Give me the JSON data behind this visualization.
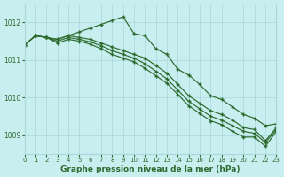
{
  "title": "Graphe pression niveau de la mer (hPa)",
  "bg_color": "#c8eef0",
  "grid_color": "#a8d8dc",
  "line_color": "#2d6a2d",
  "xlim": [
    0,
    23
  ],
  "ylim": [
    1008.5,
    1012.5
  ],
  "yticks": [
    1009,
    1010,
    1011,
    1012
  ],
  "xticks": [
    0,
    1,
    2,
    3,
    4,
    5,
    6,
    7,
    8,
    9,
    10,
    11,
    12,
    13,
    14,
    15,
    16,
    17,
    18,
    19,
    20,
    21,
    22,
    23
  ],
  "line1": [
    1011.4,
    1011.65,
    1011.6,
    1011.55,
    1011.65,
    1011.75,
    1011.85,
    1011.95,
    1012.05,
    1012.15,
    1011.7,
    1011.65,
    1011.3,
    1011.15,
    1010.75,
    1010.6,
    1010.35,
    1010.05,
    1009.95,
    1009.75,
    1009.55,
    1009.45,
    1009.25,
    1009.3
  ],
  "line2": [
    1011.4,
    1011.65,
    1011.6,
    1011.55,
    1011.65,
    1011.6,
    1011.55,
    1011.45,
    1011.35,
    1011.25,
    1011.15,
    1011.05,
    1010.85,
    1010.65,
    1010.35,
    1010.05,
    1009.85,
    1009.65,
    1009.55,
    1009.4,
    1009.2,
    1009.15,
    1008.85,
    1009.2
  ],
  "line3": [
    1011.4,
    1011.65,
    1011.6,
    1011.5,
    1011.6,
    1011.55,
    1011.48,
    1011.38,
    1011.25,
    1011.15,
    1011.05,
    1010.9,
    1010.7,
    1010.5,
    1010.2,
    1009.9,
    1009.7,
    1009.5,
    1009.4,
    1009.25,
    1009.1,
    1009.05,
    1008.8,
    1009.15
  ],
  "line4": [
    1011.4,
    1011.65,
    1011.6,
    1011.45,
    1011.55,
    1011.5,
    1011.42,
    1011.3,
    1011.15,
    1011.05,
    1010.95,
    1010.78,
    1010.58,
    1010.38,
    1010.08,
    1009.78,
    1009.58,
    1009.38,
    1009.28,
    1009.1,
    1008.95,
    1008.95,
    1008.7,
    1009.1
  ]
}
